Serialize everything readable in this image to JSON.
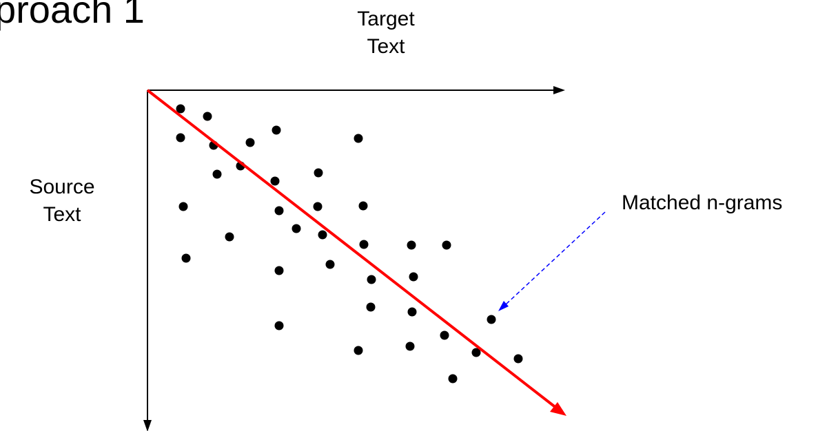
{
  "title": "proach 1",
  "target_label": [
    "Target",
    "Text"
  ],
  "source_label": [
    "Source",
    "Text"
  ],
  "callout_label": "Matched n-grams",
  "colors": {
    "axis": "#000000",
    "points": "#000000",
    "diagonal": "#ff0000",
    "callout_arrow": "#0000ff"
  }
}
